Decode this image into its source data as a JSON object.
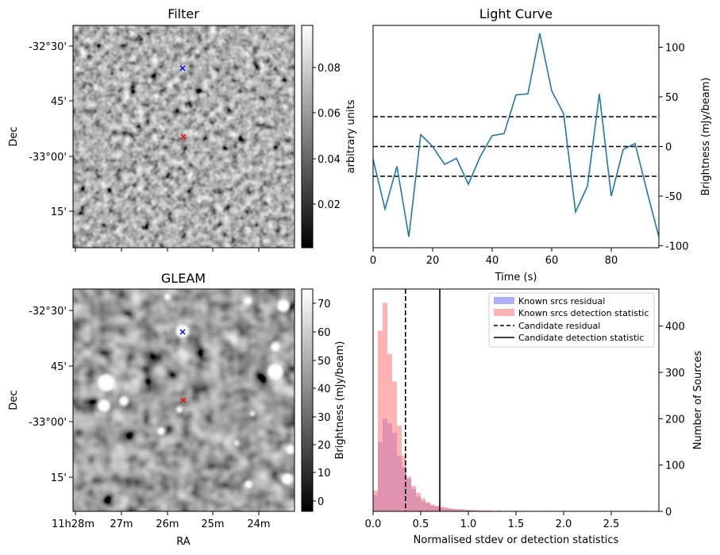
{
  "colors": {
    "series": "#1f77b4",
    "known_residual": "#7b7bf2",
    "known_detection": "#ff8080",
    "cross_blue": "#0000ff",
    "cross_red": "#ff0000"
  },
  "chart_data": [
    {
      "type": "heatmap",
      "title": "Filter",
      "xlabel": "",
      "ylabel": "Dec",
      "yticks": [
        "-32°30'",
        "45'",
        "-33°00'",
        "15'"
      ],
      "colorbar": {
        "label": "arbitrary units",
        "ticks": [
          "0.02",
          "0.04",
          "0.06",
          "0.08"
        ],
        "range": [
          0.002,
          0.097
        ],
        "colormap": "gray"
      },
      "markers": [
        {
          "symbol": "x",
          "color": "blue"
        },
        {
          "symbol": "x",
          "color": "red"
        }
      ]
    },
    {
      "type": "line",
      "title": "Light Curve",
      "xlabel": "Time (s)",
      "ylabel": "Brightness (mJy/beam)",
      "xlim": [
        0,
        96
      ],
      "ylim": [
        -102,
        122
      ],
      "xticks": [
        "0",
        "20",
        "40",
        "60",
        "80"
      ],
      "yticks": [
        "-100",
        "-50",
        "0",
        "50",
        "100"
      ],
      "x": [
        0,
        4,
        8,
        12,
        16,
        20,
        24,
        28,
        32,
        36,
        40,
        44,
        48,
        52,
        56,
        60,
        64,
        68,
        72,
        76,
        80,
        84,
        88,
        92,
        96
      ],
      "y": [
        -13,
        -63,
        -20,
        -91,
        12,
        0,
        -18,
        -12,
        -38,
        -10,
        11,
        13,
        52,
        53,
        114,
        56,
        33,
        -66,
        -40,
        53,
        -50,
        -3,
        3,
        -45,
        -91
      ],
      "hlines": [
        30,
        0,
        -30
      ],
      "grid": false
    },
    {
      "type": "heatmap",
      "title": "GLEAM",
      "xlabel": "RA",
      "ylabel": "Dec",
      "xticks": [
        "11h28m",
        "27m",
        "26m",
        "25m",
        "24m"
      ],
      "yticks": [
        "-32°30'",
        "45'",
        "-33°00'",
        "15'"
      ],
      "colorbar": {
        "label": "Brightness (mJy/beam)",
        "ticks": [
          "0",
          "10",
          "20",
          "30",
          "40",
          "50",
          "60",
          "70"
        ],
        "range": [
          -4,
          75
        ],
        "colormap": "gray"
      },
      "markers": [
        {
          "symbol": "x",
          "color": "blue"
        },
        {
          "symbol": "x",
          "color": "red"
        }
      ]
    },
    {
      "type": "bar",
      "subtype": "histogram",
      "xlabel": "Normalised stdev or detection statistics",
      "ylabel": "Number of Sources",
      "xlim": [
        0,
        3.0
      ],
      "ylim": [
        0,
        480
      ],
      "xticks": [
        "0.0",
        "0.5",
        "1.0",
        "1.5",
        "2.0",
        "2.5"
      ],
      "yticks": [
        "0",
        "100",
        "200",
        "300",
        "400"
      ],
      "bin_width": 0.05,
      "series": [
        {
          "name": "Known srcs residual",
          "values": [
            35,
            150,
            200,
            190,
            170,
            120,
            95,
            70,
            48,
            32,
            22,
            17,
            12,
            10,
            8,
            6,
            5,
            4,
            3,
            2,
            2,
            1,
            1,
            1,
            1,
            0,
            0,
            0,
            0,
            0
          ]
        },
        {
          "name": "Known srcs detection statistic",
          "values": [
            45,
            390,
            450,
            340,
            280,
            185,
            120,
            75,
            55,
            40,
            28,
            20,
            15,
            12,
            10,
            8,
            6,
            5,
            5,
            4,
            3,
            3,
            2,
            2,
            2,
            1,
            2,
            1,
            1,
            1,
            1,
            1,
            0,
            1,
            0,
            0,
            1,
            0,
            0,
            0,
            0,
            1,
            0,
            0,
            0,
            0,
            0,
            0,
            0,
            0,
            0,
            0,
            0,
            0,
            0,
            0,
            1,
            0,
            0,
            0
          ]
        }
      ],
      "vlines": [
        {
          "name": "Candidate residual",
          "x": 0.34,
          "style": "dashed"
        },
        {
          "name": "Candidate detection statistic",
          "x": 0.7,
          "style": "solid"
        }
      ],
      "legend": "top-right"
    }
  ]
}
